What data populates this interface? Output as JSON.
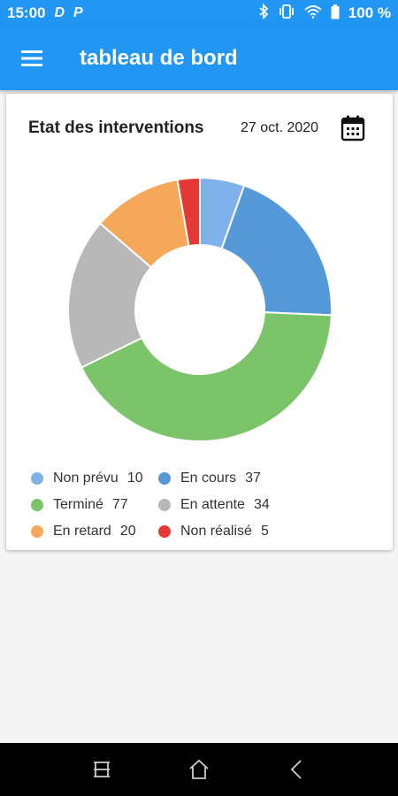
{
  "status_bar": {
    "time": "15:00",
    "left_icons": [
      "D",
      "P"
    ],
    "right_icons": [
      "bluetooth-icon",
      "vibrate-icon",
      "wifi-icon",
      "battery-icon"
    ],
    "battery": "100 %"
  },
  "app_bar": {
    "title": "tableau de bord",
    "menu_icon": "hamburger-menu-icon"
  },
  "card": {
    "title": "Etat des interventions",
    "date": "27 oct. 2020",
    "calendar_icon": "calendar-icon"
  },
  "chart_data": {
    "type": "pie",
    "categories": [
      "Non prévu",
      "En cours",
      "Terminé",
      "En attente",
      "En retard",
      "Non réalisé"
    ],
    "values": [
      10,
      37,
      77,
      34,
      20,
      5
    ],
    "colors": [
      "#7fb2eb",
      "#5599d9",
      "#7bc46a",
      "#b8b8b8",
      "#f5a75a",
      "#e53935"
    ],
    "donut": true,
    "legend_position": "bottom"
  },
  "legend_rows": [
    [
      {
        "label": "Non prévu",
        "value": "10",
        "color": "#7fb2eb"
      },
      {
        "label": "En cours",
        "value": "37",
        "color": "#5599d9"
      }
    ],
    [
      {
        "label": "Terminé",
        "value": "77",
        "color": "#7bc46a"
      },
      {
        "label": "En attente",
        "value": "34",
        "color": "#b8b8b8"
      }
    ],
    [
      {
        "label": "En retard",
        "value": "20",
        "color": "#f5a75a"
      },
      {
        "label": "Non réalisé",
        "value": "5",
        "color": "#e53935"
      }
    ]
  ],
  "nav_bar": {
    "icons": [
      "recent-apps-icon",
      "home-icon",
      "back-icon"
    ]
  }
}
